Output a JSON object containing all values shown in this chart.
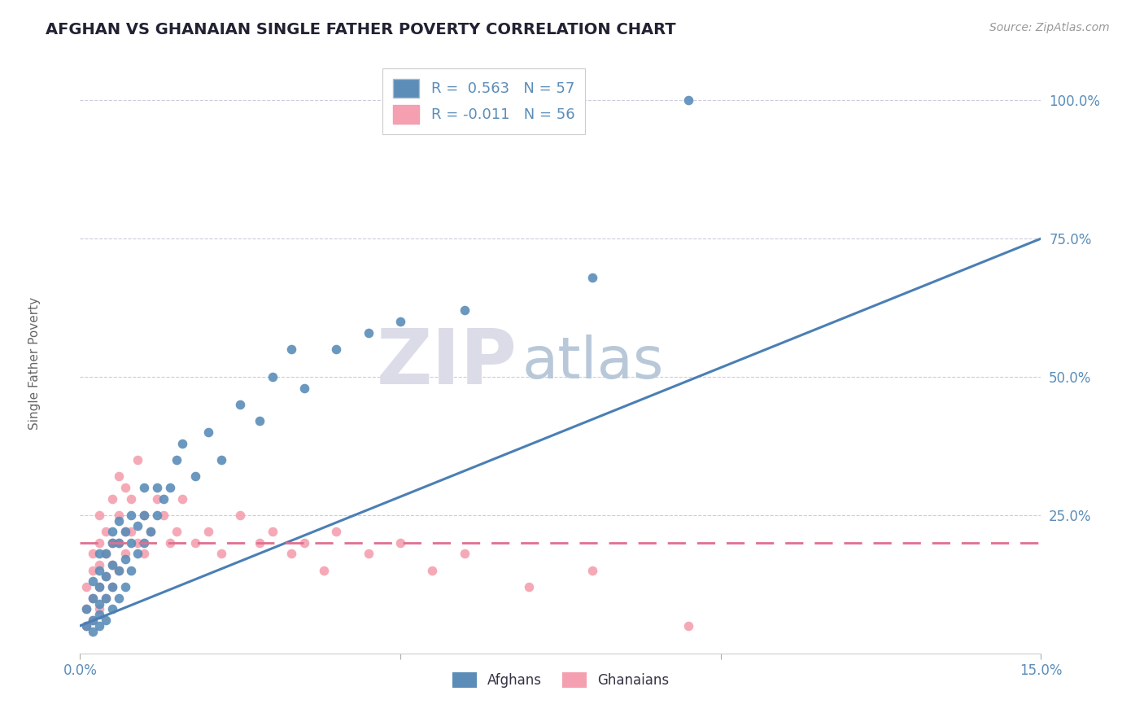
{
  "title": "AFGHAN VS GHANAIAN SINGLE FATHER POVERTY CORRELATION CHART",
  "source": "Source: ZipAtlas.com",
  "ylabel": "Single Father Poverty",
  "xlim": [
    0.0,
    0.15
  ],
  "ylim": [
    0.0,
    1.05
  ],
  "xticks": [
    0.0,
    0.05,
    0.1,
    0.15
  ],
  "xticklabels": [
    "0.0%",
    "",
    "",
    "15.0%"
  ],
  "yticks": [
    0.25,
    0.5,
    0.75,
    1.0
  ],
  "yticklabels": [
    "25.0%",
    "50.0%",
    "75.0%",
    "100.0%"
  ],
  "afghan_color": "#5B8DB8",
  "ghanaian_color": "#F4A0B0",
  "afghan_trend_color": "#4A7FB5",
  "ghanaian_trend_color": "#E07090",
  "afghan_R": 0.563,
  "afghan_N": 57,
  "ghanaian_R": -0.011,
  "ghanaian_N": 56,
  "afghan_line_y0": 0.05,
  "afghan_line_y1": 0.75,
  "ghanaian_line_y": 0.2,
  "watermark_zip": "ZIP",
  "watermark_atlas": "atlas",
  "watermark_color_zip": "#DCDCE8",
  "watermark_color_atlas": "#B8C8D8",
  "background_color": "#FFFFFF",
  "grid_color": "#CCCCDD",
  "tick_color": "#5B8DB8",
  "title_color": "#222233",
  "afghan_x": [
    0.001,
    0.001,
    0.002,
    0.002,
    0.002,
    0.002,
    0.003,
    0.003,
    0.003,
    0.003,
    0.003,
    0.003,
    0.004,
    0.004,
    0.004,
    0.004,
    0.005,
    0.005,
    0.005,
    0.005,
    0.005,
    0.006,
    0.006,
    0.006,
    0.006,
    0.007,
    0.007,
    0.007,
    0.008,
    0.008,
    0.008,
    0.009,
    0.009,
    0.01,
    0.01,
    0.01,
    0.011,
    0.012,
    0.012,
    0.013,
    0.014,
    0.015,
    0.016,
    0.018,
    0.02,
    0.022,
    0.025,
    0.028,
    0.03,
    0.033,
    0.035,
    0.04,
    0.045,
    0.05,
    0.06,
    0.08,
    0.095
  ],
  "afghan_y": [
    0.05,
    0.08,
    0.04,
    0.06,
    0.1,
    0.13,
    0.05,
    0.07,
    0.09,
    0.12,
    0.15,
    0.18,
    0.06,
    0.1,
    0.14,
    0.18,
    0.08,
    0.12,
    0.16,
    0.2,
    0.22,
    0.1,
    0.15,
    0.2,
    0.24,
    0.12,
    0.17,
    0.22,
    0.15,
    0.2,
    0.25,
    0.18,
    0.23,
    0.2,
    0.25,
    0.3,
    0.22,
    0.25,
    0.3,
    0.28,
    0.3,
    0.35,
    0.38,
    0.32,
    0.4,
    0.35,
    0.45,
    0.42,
    0.5,
    0.55,
    0.48,
    0.55,
    0.58,
    0.6,
    0.62,
    0.68,
    1.0
  ],
  "ghanaian_x": [
    0.001,
    0.001,
    0.001,
    0.002,
    0.002,
    0.002,
    0.002,
    0.003,
    0.003,
    0.003,
    0.003,
    0.003,
    0.004,
    0.004,
    0.004,
    0.004,
    0.005,
    0.005,
    0.005,
    0.005,
    0.006,
    0.006,
    0.006,
    0.006,
    0.007,
    0.007,
    0.007,
    0.008,
    0.008,
    0.009,
    0.009,
    0.01,
    0.01,
    0.011,
    0.012,
    0.013,
    0.014,
    0.015,
    0.016,
    0.018,
    0.02,
    0.022,
    0.025,
    0.028,
    0.03,
    0.033,
    0.035,
    0.038,
    0.04,
    0.045,
    0.05,
    0.055,
    0.06,
    0.07,
    0.08,
    0.095
  ],
  "ghanaian_y": [
    0.05,
    0.08,
    0.12,
    0.06,
    0.1,
    0.15,
    0.18,
    0.08,
    0.12,
    0.16,
    0.2,
    0.25,
    0.1,
    0.14,
    0.18,
    0.22,
    0.12,
    0.16,
    0.2,
    0.28,
    0.15,
    0.2,
    0.25,
    0.32,
    0.18,
    0.22,
    0.3,
    0.22,
    0.28,
    0.2,
    0.35,
    0.18,
    0.25,
    0.22,
    0.28,
    0.25,
    0.2,
    0.22,
    0.28,
    0.2,
    0.22,
    0.18,
    0.25,
    0.2,
    0.22,
    0.18,
    0.2,
    0.15,
    0.22,
    0.18,
    0.2,
    0.15,
    0.18,
    0.12,
    0.15,
    0.05
  ]
}
